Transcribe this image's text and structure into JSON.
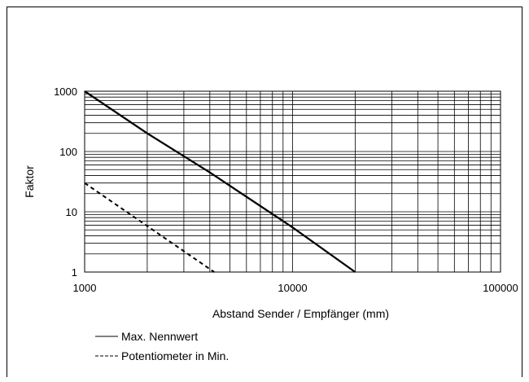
{
  "chart_data": {
    "type": "line",
    "title": "",
    "xlabel": "Abstand Sender / Empfänger (mm)",
    "ylabel": "Faktor",
    "xscale": "log",
    "yscale": "log",
    "xlim": [
      1000,
      100000
    ],
    "ylim": [
      1,
      1000
    ],
    "x_tick_labels": [
      "1000",
      "10000",
      "100000"
    ],
    "y_tick_labels": [
      "1",
      "10",
      "100",
      "1000"
    ],
    "grid": true,
    "legend_position": "bottom-left",
    "series": [
      {
        "name": "Max. Nennwert",
        "style": "solid",
        "color": "#000000",
        "x": [
          1000,
          2000,
          4000,
          10000,
          20000
        ],
        "y": [
          1000,
          200,
          45,
          5.5,
          1
        ]
      },
      {
        "name": "Potentiometer in Min.",
        "style": "dashed",
        "color": "#000000",
        "x": [
          1000,
          4200
        ],
        "y": [
          30,
          1
        ]
      }
    ]
  }
}
